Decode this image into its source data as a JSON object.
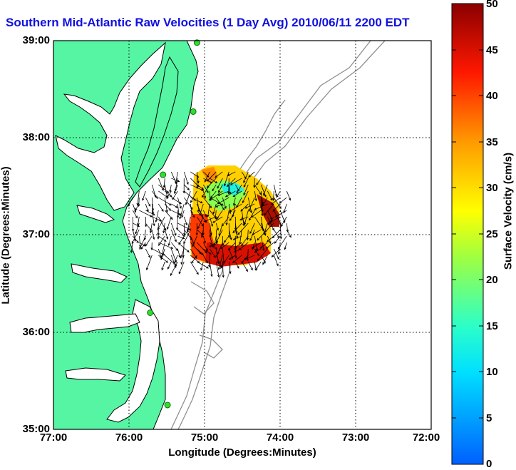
{
  "title": "Southern Mid-Atlantic Raw Velocities (1 Day Avg) 2010/06/11 2200 EDT",
  "xlabel": "Longitude (Degrees:Minutes)",
  "ylabel": "Latitude (Degrees:Minutes)",
  "x_ticks": [
    "77:00",
    "76:00",
    "75:00",
    "74:00",
    "73:00",
    "72:00"
  ],
  "y_ticks": [
    "39:00",
    "38:00",
    "37:00",
    "36:00",
    "35:00"
  ],
  "colorbar": {
    "label": "Surface Velocity (cm/s)",
    "ticks": [
      "50",
      "45",
      "40",
      "35",
      "30",
      "25",
      "20",
      "15",
      "10",
      "5",
      "0"
    ],
    "range": [
      0,
      50
    ]
  },
  "colors": {
    "land": "#55f5a3",
    "ocean": "#ffffff",
    "title": "#1010e0",
    "coastline": "#000000",
    "bathymetry": "#909090",
    "station": "#2ee02e"
  },
  "chart_data": {
    "type": "map",
    "region": "Southern Mid-Atlantic",
    "lon_range": [
      -77,
      -72
    ],
    "lat_range": [
      35,
      39
    ],
    "grid": true,
    "legend": "colorbar-right",
    "stations": [
      {
        "lon": -75.1,
        "lat": 38.98
      },
      {
        "lon": -75.15,
        "lat": 38.27
      },
      {
        "lon": -75.55,
        "lat": 37.62
      },
      {
        "lon": -75.72,
        "lat": 36.2
      },
      {
        "lon": -75.49,
        "lat": 35.25
      }
    ],
    "velocity_field": {
      "units": "cm/s",
      "lon_extent": [
        -75.95,
        -73.85
      ],
      "lat_extent": [
        36.68,
        37.65
      ],
      "sample_speeds": [
        22,
        30,
        18,
        12,
        24,
        35,
        42,
        28,
        20,
        45,
        40,
        15
      ]
    }
  }
}
